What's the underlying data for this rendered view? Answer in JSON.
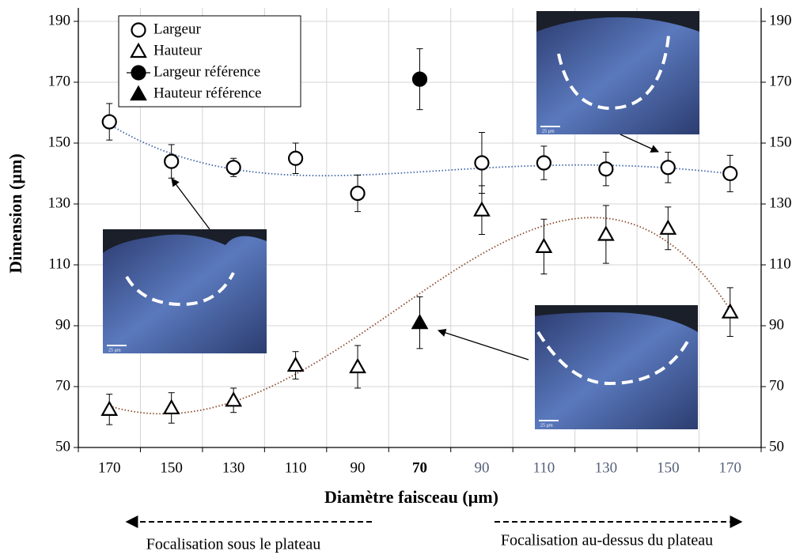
{
  "chart_data": {
    "type": "scatter",
    "x_label": "Diamètre faisceau (µm)",
    "y_label": "Dimension (µm)",
    "categories": [
      "170",
      "150",
      "130",
      "110",
      "90",
      "70",
      "90",
      "110",
      "130",
      "150",
      "170"
    ],
    "x_tick_colors": [
      "#000000",
      "#000000",
      "#000000",
      "#000000",
      "#000000",
      "#000000",
      "#56607a",
      "#56607a",
      "#56607a",
      "#56607a",
      "#56607a"
    ],
    "x_tick_bold": [
      false,
      false,
      false,
      false,
      false,
      true,
      false,
      false,
      false,
      false,
      false
    ],
    "ylim": [
      50,
      190
    ],
    "yticks": [
      50,
      70,
      90,
      110,
      130,
      150,
      170,
      190
    ],
    "grid": true,
    "legend": "upper left",
    "series": [
      {
        "name": "Largeur",
        "marker": "circle",
        "filled": false,
        "color": "#000000",
        "trend_color": "#3f66a8",
        "values": [
          157,
          144,
          142,
          145,
          133.5,
          null,
          143.5,
          143.5,
          141.5,
          142,
          140
        ],
        "errors": [
          6,
          5.5,
          3,
          5,
          6,
          null,
          10,
          5.5,
          5.5,
          5,
          6
        ]
      },
      {
        "name": "Hauteur",
        "marker": "triangle",
        "filled": false,
        "color": "#000000",
        "trend_color": "#8b4a2b",
        "values": [
          62.5,
          63,
          65.5,
          77,
          76.5,
          null,
          128,
          116,
          120,
          122,
          94.5
        ],
        "errors": [
          5,
          5,
          4,
          4.5,
          7,
          null,
          8,
          9,
          9.5,
          7,
          8
        ]
      },
      {
        "name": "Largeur référence",
        "marker": "circle",
        "filled": true,
        "color": "#000000",
        "values": [
          null,
          null,
          null,
          null,
          null,
          171,
          null,
          null,
          null,
          null,
          null
        ],
        "errors": [
          null,
          null,
          null,
          null,
          null,
          10,
          null,
          null,
          null,
          null,
          null
        ]
      },
      {
        "name": "Hauteur référence",
        "marker": "triangle",
        "filled": true,
        "color": "#000000",
        "values": [
          null,
          null,
          null,
          null,
          null,
          91,
          null,
          null,
          null,
          null,
          null
        ],
        "errors": [
          null,
          null,
          null,
          null,
          null,
          8.5,
          null,
          null,
          null,
          null,
          null
        ]
      }
    ],
    "scale_label": "25 µm",
    "annotations": [
      "Focalisation sous le plateau",
      "Focalisation au-dessus du plateau"
    ]
  }
}
